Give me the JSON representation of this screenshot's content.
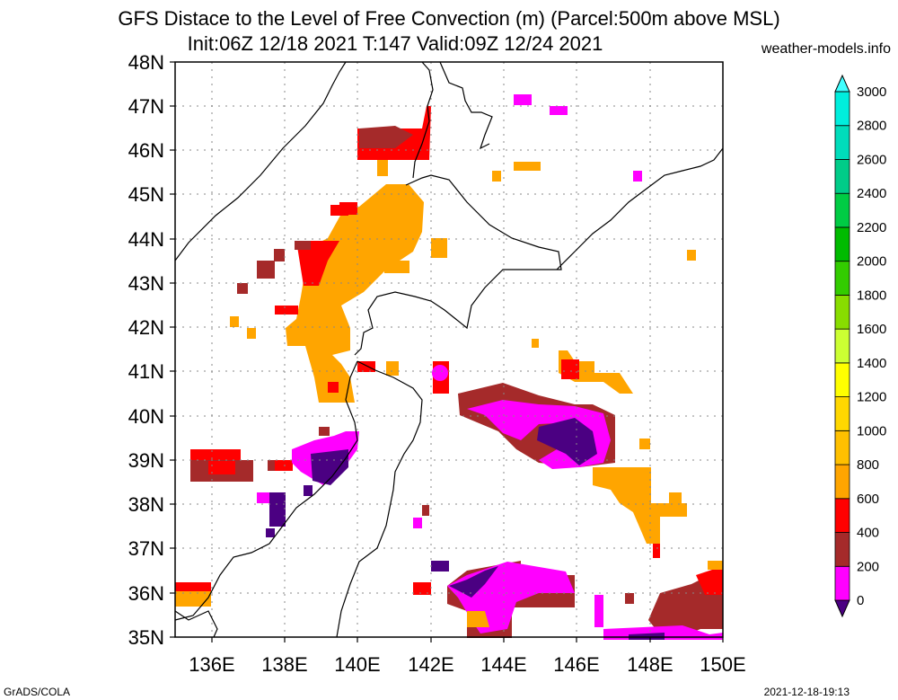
{
  "header": {
    "title_line1": "GFS Distace to the Level of Free Convection (m) (Parcel:500m above MSL)",
    "title_line2": "Init:06Z 12/18 2021 T:147 Valid:09Z 12/24 2021",
    "site": "weather-models.info"
  },
  "footer": {
    "left": "GrADS/COLA",
    "right": "2021-12-18-19:13"
  },
  "map": {
    "lat_labels": [
      "48N",
      "47N",
      "46N",
      "45N",
      "44N",
      "43N",
      "42N",
      "41N",
      "40N",
      "39N",
      "38N",
      "37N",
      "36N",
      "35N"
    ],
    "lon_labels": [
      "136E",
      "138E",
      "140E",
      "142E",
      "144E",
      "146E",
      "148E",
      "150E"
    ]
  },
  "colorbar": {
    "labels": [
      "0",
      "200",
      "400",
      "600",
      "800",
      "1000",
      "1200",
      "1400",
      "1600",
      "1800",
      "2000",
      "2200",
      "2400",
      "2600",
      "2800",
      "3000"
    ],
    "colors": [
      "#4b0082",
      "#ff00ff",
      "#a52a2a",
      "#ff0000",
      "#ffa500",
      "#ffc000",
      "#ffd700",
      "#ffff00",
      "#ccff33",
      "#88dd00",
      "#33cc00",
      "#00bb00",
      "#00cc44",
      "#00cc88",
      "#00ddbb",
      "#00eedd",
      "#40ffff"
    ]
  }
}
